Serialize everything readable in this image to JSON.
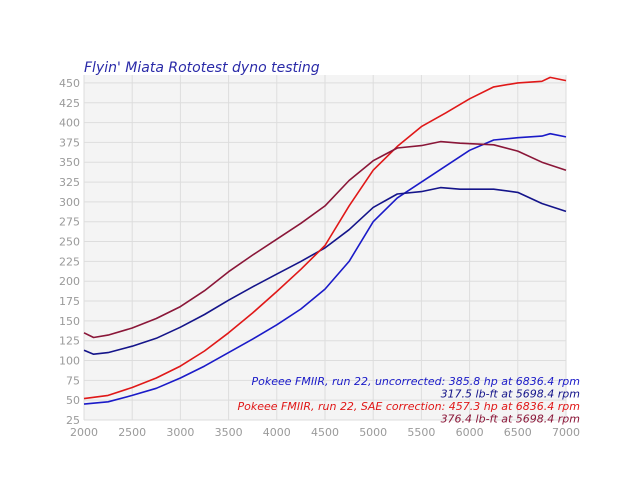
{
  "chart_data": {
    "type": "line",
    "title": "Flyin' Miata Rototest dyno testing",
    "xlabel": "",
    "ylabel": "",
    "xlim": [
      2000,
      7000
    ],
    "ylim": [
      25,
      460
    ],
    "xticks": [
      2000,
      2500,
      3000,
      3500,
      4000,
      4500,
      5000,
      5500,
      6000,
      6500,
      7000
    ],
    "yticks": [
      25,
      50,
      75,
      100,
      125,
      150,
      175,
      200,
      225,
      250,
      275,
      300,
      325,
      350,
      375,
      400,
      425,
      450
    ],
    "grid": true,
    "legend_position": "bottom-right",
    "series": [
      {
        "color": "#1a1ac8",
        "x": [
          2000,
          2250,
          2500,
          2750,
          3000,
          3250,
          3500,
          3750,
          4000,
          4250,
          4500,
          4750,
          5000,
          5250,
          5500,
          5750,
          6000,
          6250,
          6500,
          6750,
          6836,
          7000
        ],
        "y": [
          45,
          48,
          56,
          65,
          78,
          93,
          110,
          127,
          145,
          165,
          190,
          225,
          275,
          305,
          325,
          345,
          365,
          378,
          381,
          383,
          386,
          382
        ]
      },
      {
        "color": "#14148a",
        "x": [
          2000,
          2100,
          2250,
          2500,
          2750,
          3000,
          3250,
          3500,
          3750,
          4000,
          4250,
          4500,
          4750,
          5000,
          5250,
          5500,
          5698,
          5900,
          6250,
          6500,
          6750,
          7000
        ],
        "y": [
          113,
          108,
          110,
          118,
          128,
          142,
          158,
          176,
          193,
          209,
          225,
          242,
          265,
          293,
          310,
          313,
          318,
          316,
          316,
          312,
          298,
          288
        ]
      },
      {
        "color": "#e01818",
        "x": [
          2000,
          2250,
          2500,
          2750,
          3000,
          3250,
          3500,
          3750,
          4000,
          4250,
          4500,
          4750,
          5000,
          5250,
          5500,
          5750,
          6000,
          6250,
          6500,
          6750,
          6836,
          7000
        ],
        "y": [
          52,
          56,
          66,
          78,
          93,
          112,
          135,
          160,
          187,
          215,
          245,
          295,
          340,
          370,
          395,
          412,
          430,
          445,
          450,
          452,
          457,
          453
        ]
      },
      {
        "color": "#8a1638",
        "x": [
          2000,
          2100,
          2250,
          2500,
          2750,
          3000,
          3250,
          3500,
          3750,
          4000,
          4250,
          4500,
          4750,
          5000,
          5250,
          5500,
          5698,
          5900,
          6250,
          6500,
          6750,
          7000
        ],
        "y": [
          135,
          129,
          132,
          141,
          153,
          168,
          188,
          212,
          233,
          253,
          273,
          295,
          327,
          352,
          368,
          371,
          376,
          374,
          372,
          364,
          350,
          340
        ]
      }
    ],
    "legend": [
      {
        "text": "Pokeee FMIIR, run 22, uncorrected: 385.8 hp at 6836.4 rpm",
        "color": "#1a1ac8"
      },
      {
        "text": "317.5 lb-ft at 5698.4 rpm",
        "color": "#14148a"
      },
      {
        "text": "Pokeee FMIIR, run 22, SAE correction: 457.3 hp at 6836.4 rpm",
        "color": "#e01818"
      },
      {
        "text": "376.4 lb-ft at 5698.4 rpm",
        "color": "#8a1638"
      }
    ]
  }
}
